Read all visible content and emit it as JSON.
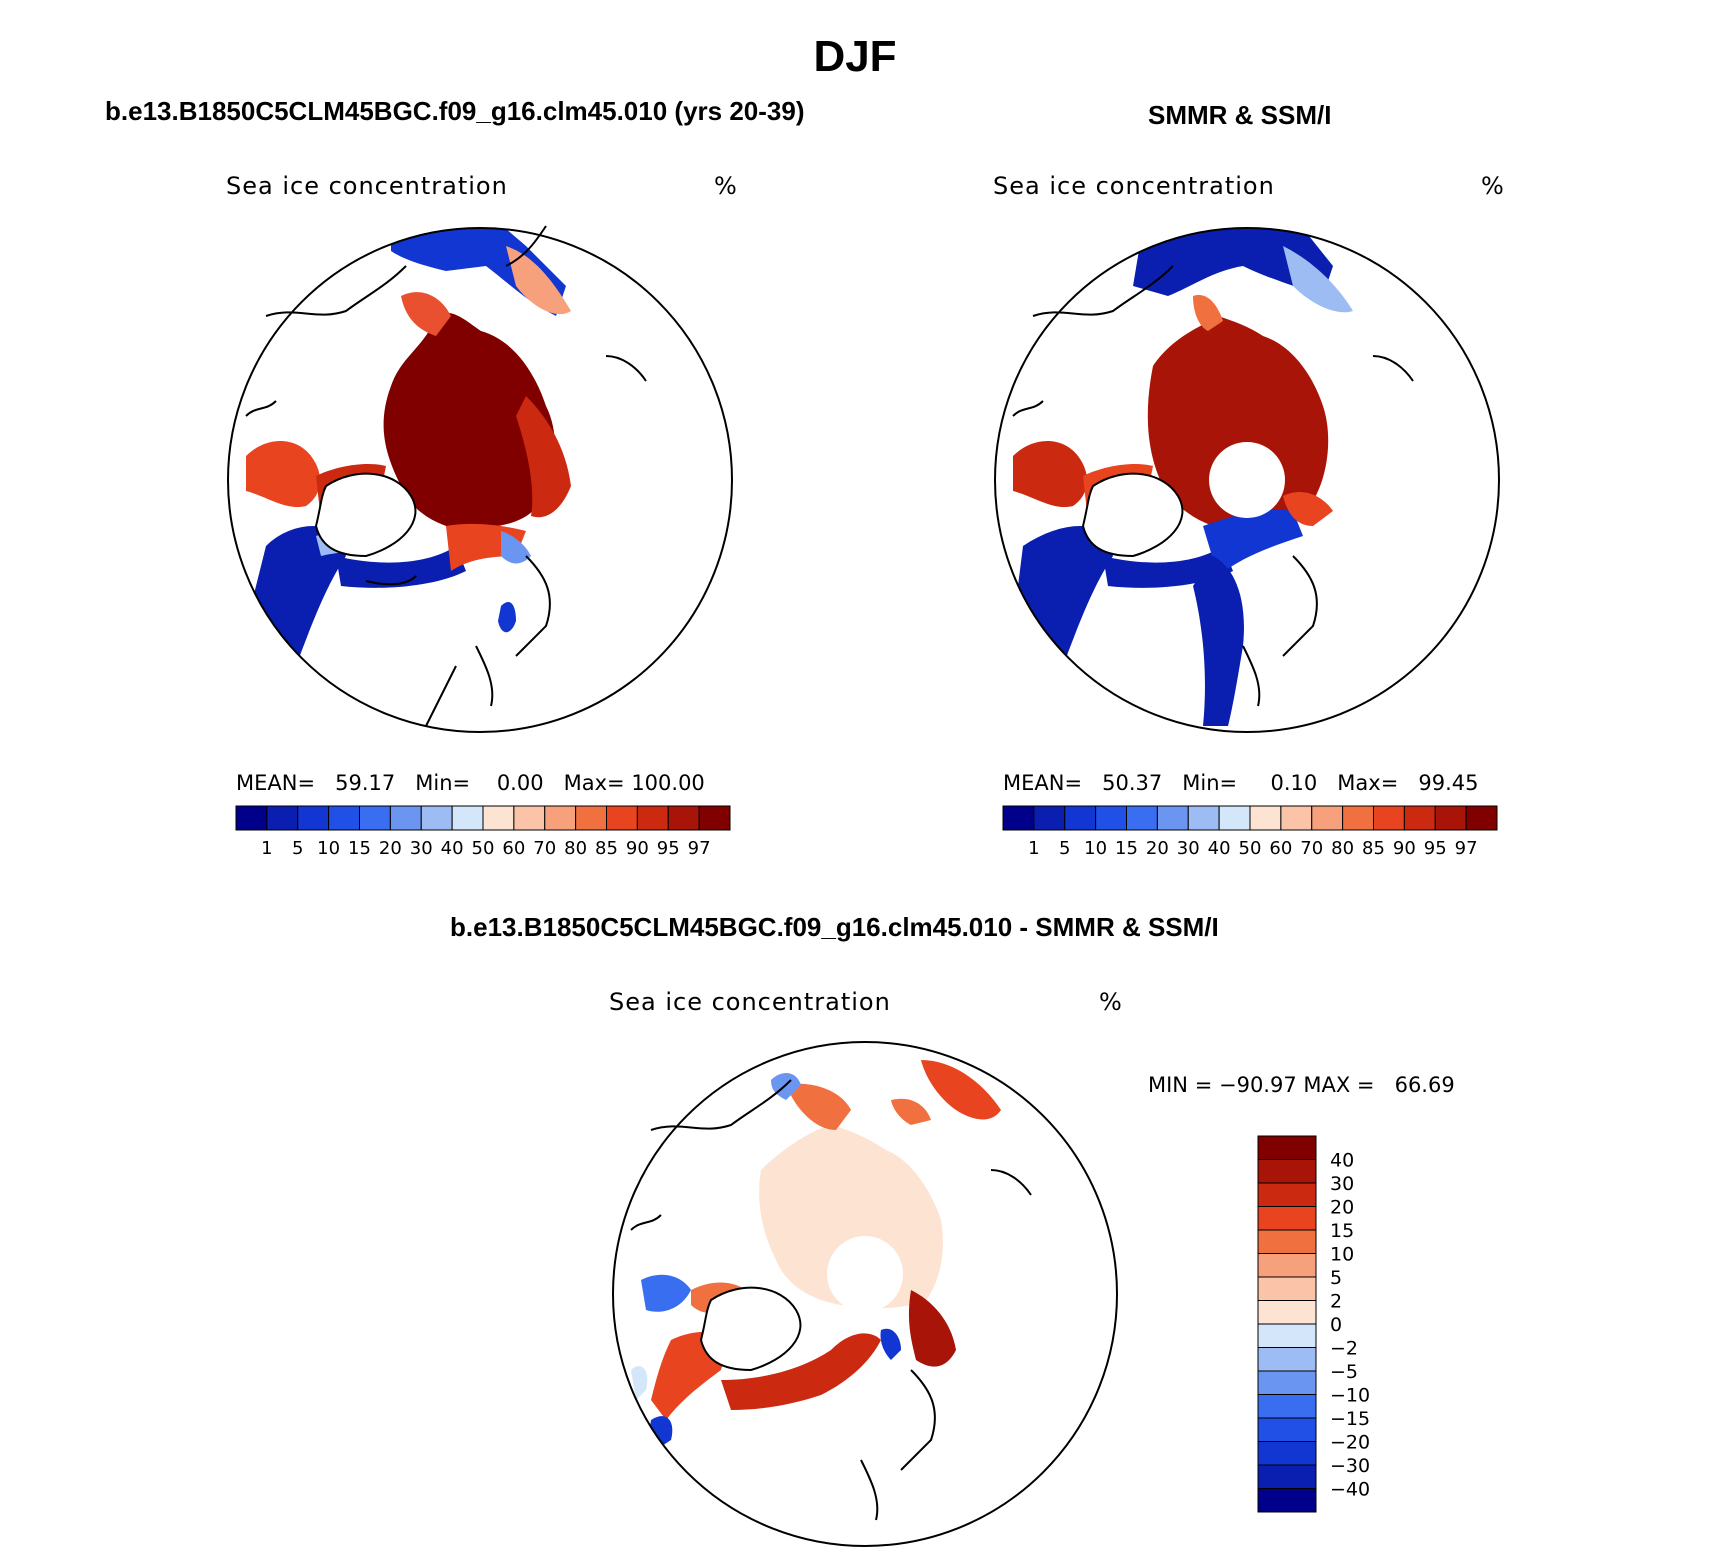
{
  "page": {
    "title": "DJF"
  },
  "panels": [
    {
      "heading": "b.e13.B1850C5CLM45BGC.f09_g16.clm45.010 (yrs 20-39)",
      "variable": "Sea ice concentration",
      "units": "%",
      "stats": {
        "mean_label": "MEAN=",
        "mean": "59.17",
        "min_label": "Min=",
        "min": "0.00",
        "max_label": "Max=",
        "max": "100.00"
      }
    },
    {
      "heading": "SMMR & SSM/I",
      "variable": "Sea ice concentration",
      "units": "%",
      "stats": {
        "mean_label": "MEAN=",
        "mean": "50.37",
        "min_label": "Min=",
        "min": "0.10",
        "max_label": "Max=",
        "max": "99.45"
      }
    }
  ],
  "diff_panel": {
    "heading": "b.e13.B1850C5CLM45BGC.f09_g16.clm45.010 - SMMR & SSM/I",
    "variable": "Sea ice concentration",
    "units": "%",
    "stats": {
      "min_label": "MIN =",
      "min": "−90.97",
      "max_label": "MAX =",
      "max": "66.69"
    }
  },
  "colorbar_abs": {
    "ticks": [
      "1",
      "5",
      "10",
      "15",
      "20",
      "30",
      "40",
      "50",
      "60",
      "70",
      "80",
      "85",
      "90",
      "95",
      "97"
    ],
    "colors": [
      "#00008b",
      "#0a1fb0",
      "#1236d2",
      "#2050e6",
      "#3a6ef0",
      "#6a96f2",
      "#9dbcf4",
      "#d4e6fa",
      "#fde3d2",
      "#fbc4a8",
      "#f6a07c",
      "#f07040",
      "#e84420",
      "#cc2a10",
      "#a81408",
      "#800000"
    ]
  },
  "colorbar_diff": {
    "ticks": [
      "40",
      "30",
      "20",
      "15",
      "10",
      "5",
      "2",
      "0",
      "−2",
      "−5",
      "−10",
      "−15",
      "−20",
      "−30",
      "−40"
    ],
    "colors": [
      "#800000",
      "#a81408",
      "#cc2a10",
      "#e84420",
      "#f07040",
      "#f6a07c",
      "#fbc4a8",
      "#fde3d2",
      "#d4e6fa",
      "#9dbcf4",
      "#6a96f2",
      "#3a6ef0",
      "#2050e6",
      "#1236d2",
      "#0a1fb0",
      "#00008b"
    ]
  }
}
